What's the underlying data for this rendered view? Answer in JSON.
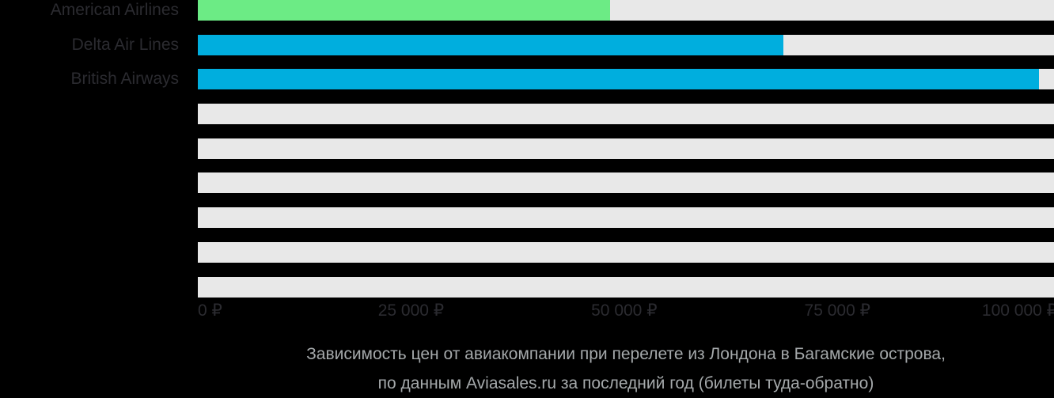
{
  "chart_data": {
    "type": "bar",
    "orientation": "horizontal",
    "title": "Зависимость цен от авиакомпании при перелете из Лондона в Багамские острова, по данным Aviasales.ru за последний год (билеты туда-обратно)",
    "categories": [
      "American Airlines",
      "Delta Air Lines",
      "British Airways",
      "",
      "",
      "",
      "",
      "",
      ""
    ],
    "values": [
      48300,
      68650,
      98600,
      0,
      0,
      0,
      0,
      0,
      0
    ],
    "bar_colors": [
      "#6CEB85",
      "#00AEDE",
      "#00AEDE",
      "",
      "",
      "",
      "",
      "",
      ""
    ],
    "xlabel": "",
    "ylabel": "",
    "xlim": [
      0,
      100400
    ],
    "xticks": [
      {
        "label": "0 ₽",
        "value": 0,
        "align": "left"
      },
      {
        "label": "25 000 ₽",
        "value": 25000,
        "align": "center"
      },
      {
        "label": "50 000 ₽",
        "value": 50000,
        "align": "center"
      },
      {
        "label": "75 000 ₽",
        "value": 75000,
        "align": "center"
      },
      {
        "label": "100 000 ₽",
        "value": 100000,
        "align": "right"
      }
    ],
    "grid": false,
    "legend": false,
    "track_color": "#E8E8E8"
  },
  "caption": {
    "line1": "Зависимость цен от авиакомпании при перелете из Лондона в Багамские острова,",
    "line2": "по данным Aviasales.ru за последний год (билеты туда-обратно)"
  },
  "colors": {
    "background": "#000000",
    "track": "#E8E8E8",
    "bar_green": "#6CEB85",
    "bar_blue": "#00AEDE",
    "axis_text": "#2B2B30",
    "caption_text": "#A5A9AB"
  }
}
